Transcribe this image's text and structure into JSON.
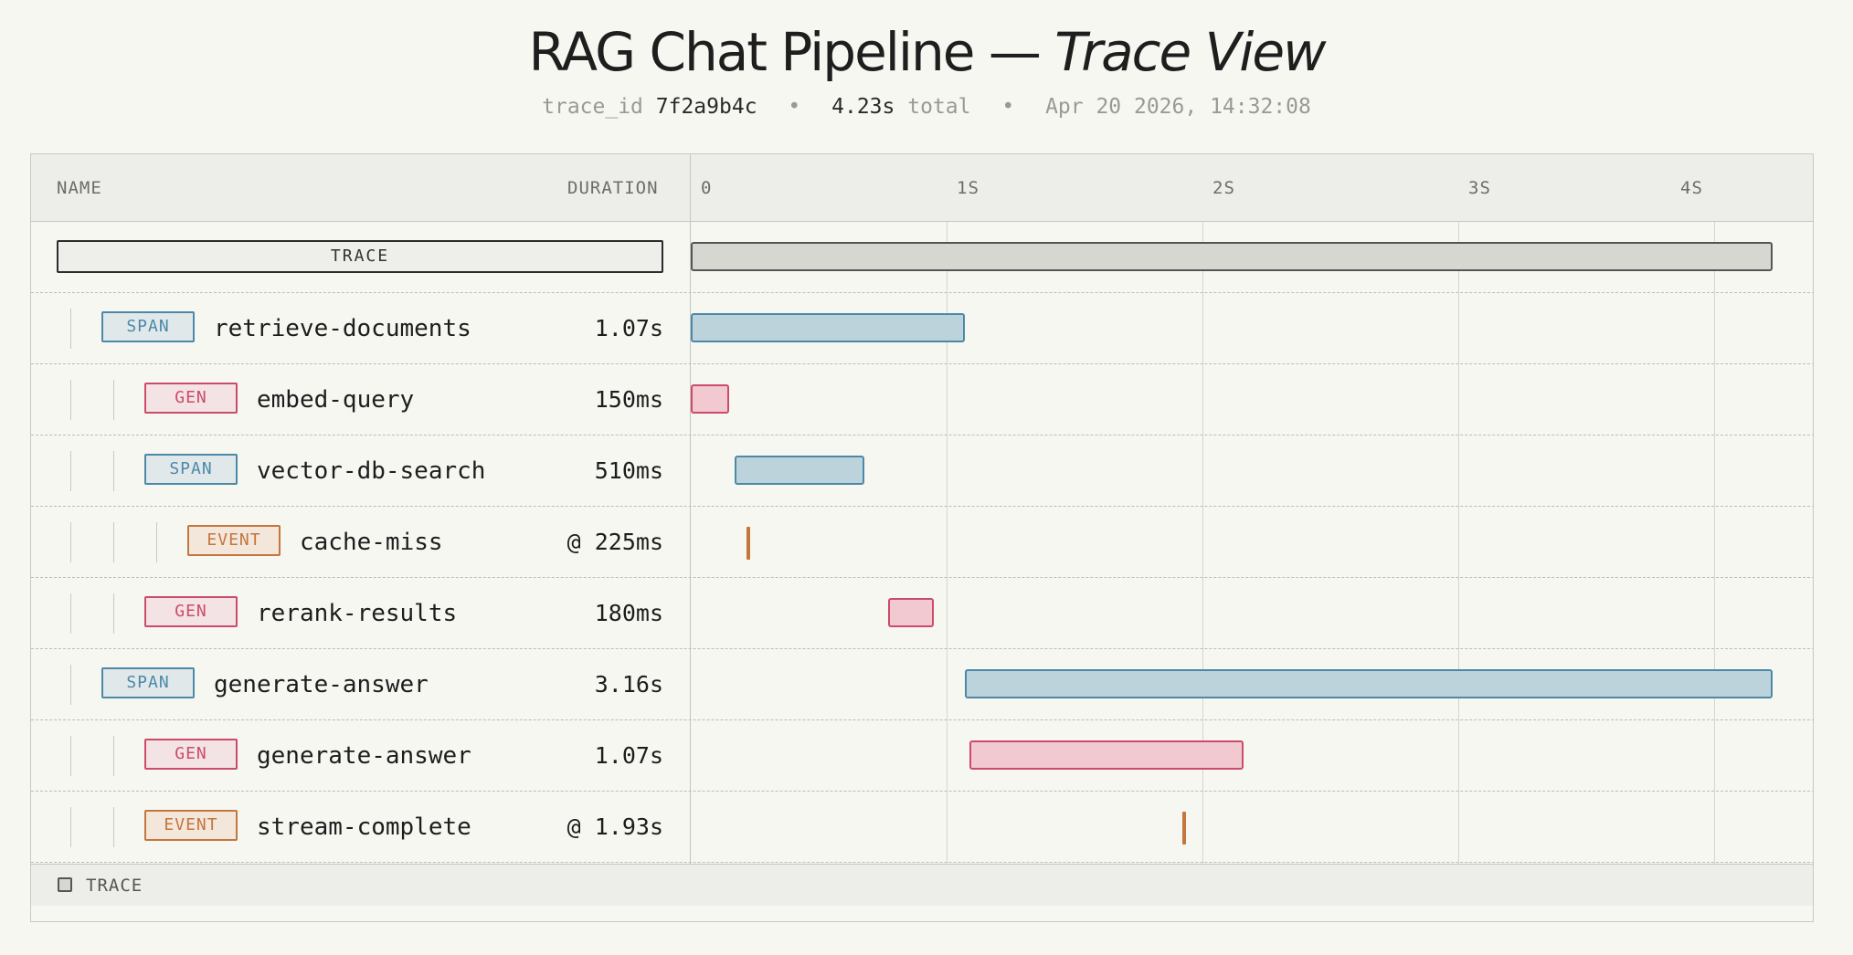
{
  "header": {
    "title_main": "RAG Chat Pipeline —",
    "title_italic": "Trace View",
    "trace_id_label": "trace_id",
    "trace_id": "7f2a9b4c",
    "total_value": "4.23s",
    "total_label": "total",
    "timestamp": "Apr 20 2026, 14:32:08"
  },
  "table": {
    "col_name": "NAME",
    "col_duration": "DURATION",
    "ticks": [
      "0",
      "1S",
      "2S",
      "3S",
      "4S"
    ],
    "timeline": {
      "start_s": 0,
      "end_s": 4.23,
      "tick_step_s": 1
    },
    "trace_row": {
      "badge": "TRACE",
      "start_s": 0,
      "end_s": 4.23
    },
    "rows": [
      {
        "type": "SPAN",
        "name": "retrieve-documents",
        "duration": "1.07s",
        "depth": 1,
        "start_s": 0,
        "end_s": 1.07
      },
      {
        "type": "GEN",
        "name": "embed-query",
        "duration": "150ms",
        "depth": 2,
        "start_s": 0,
        "end_s": 0.15
      },
      {
        "type": "SPAN",
        "name": "vector-db-search",
        "duration": "510ms",
        "depth": 2,
        "start_s": 0.17,
        "end_s": 0.68
      },
      {
        "type": "EVENT",
        "name": "cache-miss",
        "duration": "@ 225ms",
        "depth": 3,
        "at_s": 0.225
      },
      {
        "type": "GEN",
        "name": "rerank-results",
        "duration": "180ms",
        "depth": 2,
        "start_s": 0.77,
        "end_s": 0.95
      },
      {
        "type": "SPAN",
        "name": "generate-answer",
        "duration": "3.16s",
        "depth": 1,
        "start_s": 1.07,
        "end_s": 4.23
      },
      {
        "type": "GEN",
        "name": "generate-answer",
        "duration": "1.07s",
        "depth": 2,
        "start_s": 1.09,
        "end_s": 2.16
      },
      {
        "type": "EVENT",
        "name": "stream-complete",
        "duration": "@ 1.93s",
        "depth": 2,
        "at_s": 1.93
      }
    ]
  },
  "legend": {
    "label": "TRACE"
  },
  "colors": {
    "span": "#4c89a8",
    "gen": "#cc4b69",
    "event": "#c4763c",
    "trace": "#555555",
    "background": "#f7f7f2"
  }
}
